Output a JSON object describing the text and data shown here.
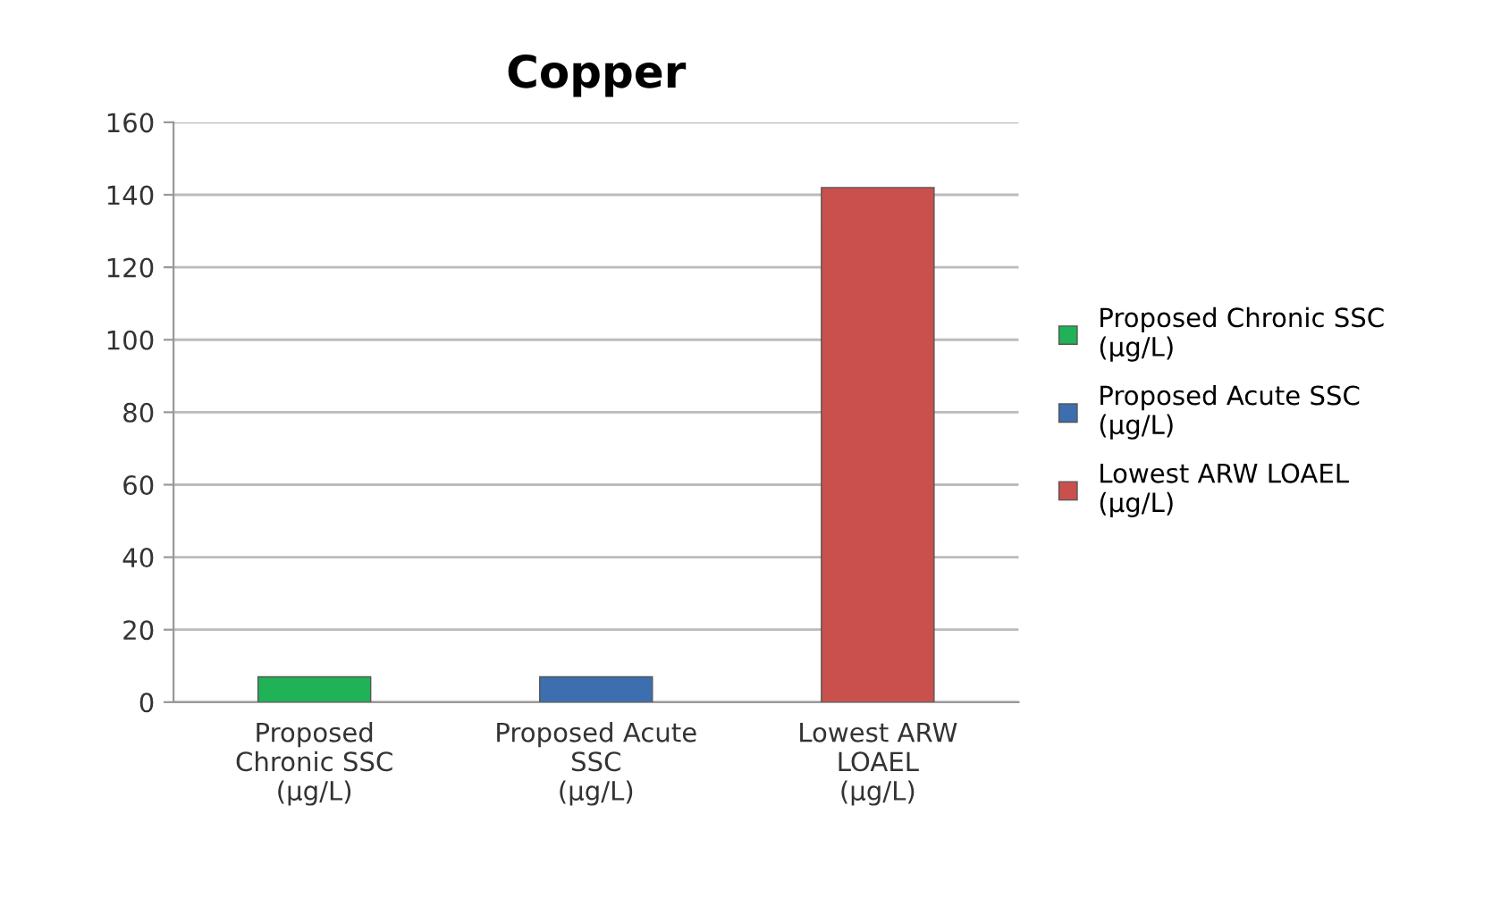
{
  "chart_data": {
    "type": "bar",
    "title": "Copper",
    "categories": [
      "Proposed\nChronic SSC\n(µg/L)",
      "Proposed Acute\nSSC\n(µg/L)",
      "Lowest ARW\nLOAEL\n(µg/L)"
    ],
    "series": [
      {
        "name": "Proposed Chronic SSC\n(µg/L)",
        "color": "#1fb257",
        "values": [
          7,
          null,
          null
        ]
      },
      {
        "name": "Proposed Acute SSC\n(µg/L)",
        "color": "#3d6fb0",
        "values": [
          null,
          7,
          null
        ]
      },
      {
        "name": "Lowest ARW LOAEL\n(µg/L)",
        "color": "#c9504d",
        "values": [
          null,
          null,
          142
        ]
      }
    ],
    "ylim": [
      0,
      160
    ],
    "yticks": [
      0,
      20,
      40,
      60,
      80,
      100,
      120,
      140,
      160
    ],
    "grid": "y",
    "legend": "right"
  }
}
